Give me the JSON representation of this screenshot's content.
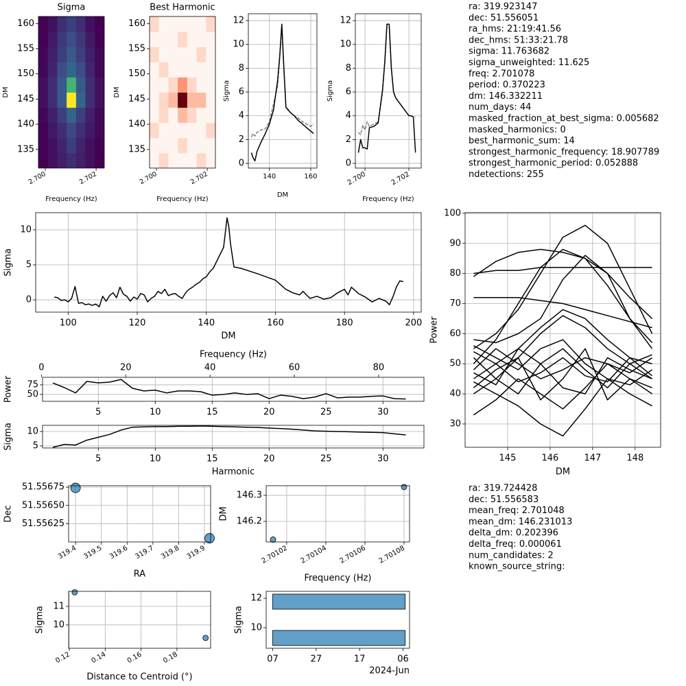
{
  "chart_data": [
    {
      "type": "heatmap",
      "title": "Sigma",
      "xlabel": "Frequency (Hz)",
      "ylabel": "DM",
      "colormap": "viridis",
      "xlim": [
        2.69973,
        2.70232
      ],
      "ylim": [
        131.3,
        161.4
      ],
      "xticks": [
        {
          "value": 2.7,
          "label": "2.700"
        },
        2.702
      ],
      "yticks": [
        135,
        140,
        145,
        150,
        155,
        160
      ],
      "z": [
        [
          1,
          1.5,
          2,
          2.5,
          2,
          1.5,
          1
        ],
        [
          1,
          1.5,
          2.2,
          3,
          2.2,
          1.5,
          1
        ],
        [
          1,
          1.8,
          2.5,
          3.3,
          2.5,
          1.8,
          1.2
        ],
        [
          1.2,
          2,
          3,
          4.5,
          3,
          2,
          1.2
        ],
        [
          1.5,
          2.5,
          4,
          11.7,
          4.5,
          2.5,
          1.5
        ],
        [
          1.5,
          2.5,
          4,
          8,
          4,
          2.5,
          1.5
        ],
        [
          1.2,
          2.2,
          3.5,
          4.5,
          3.5,
          2.2,
          1.2
        ],
        [
          1.2,
          2,
          3,
          4,
          3,
          2,
          1.2
        ],
        [
          1,
          1.8,
          2.8,
          3.5,
          2.8,
          1.8,
          1
        ],
        [
          1,
          1.5,
          2.5,
          3,
          2.5,
          1.5,
          1
        ]
      ]
    },
    {
      "type": "heatmap",
      "title": "Best Harmonic",
      "xlabel": "Frequency (Hz)",
      "ylabel": "DM",
      "colormap": "reds",
      "xlim": [
        2.69973,
        2.70232
      ],
      "ylim": [
        131.3,
        161.4
      ],
      "xticks": [
        {
          "value": 2.7,
          "label": "2.700"
        },
        2.702
      ],
      "yticks": [
        135,
        140,
        145,
        150,
        155,
        160
      ],
      "z": [
        [
          0,
          1,
          0,
          0,
          0,
          1,
          0
        ],
        [
          0,
          0,
          0,
          1,
          0,
          0,
          0
        ],
        [
          1,
          0,
          0,
          0,
          0,
          0,
          1
        ],
        [
          0,
          1,
          0,
          2,
          1,
          0,
          0
        ],
        [
          0,
          1,
          2,
          8,
          2,
          2,
          0
        ],
        [
          0,
          0,
          1,
          3,
          1,
          0,
          0
        ],
        [
          0,
          1,
          0,
          0,
          0,
          0,
          0
        ],
        [
          1,
          0,
          0,
          0,
          0,
          1,
          0
        ],
        [
          0,
          0,
          0,
          1,
          0,
          0,
          0
        ],
        [
          1,
          0,
          0,
          0,
          0,
          0,
          1
        ]
      ]
    },
    {
      "type": "line",
      "xlabel": "DM",
      "ylabel": "Sigma",
      "grid": true,
      "xlim": [
        129.8,
        163
      ],
      "ylim": [
        -0.4,
        12.58
      ],
      "xticks": [
        140,
        160
      ],
      "yticks": [
        0,
        2,
        4,
        6,
        8,
        10,
        12
      ],
      "x": [
        131.3,
        132,
        133,
        134,
        136,
        138,
        140,
        142,
        144,
        145,
        146,
        147,
        148,
        150,
        152,
        154,
        156,
        158,
        160,
        161.4
      ],
      "series": [
        {
          "color": "#808080",
          "linestyle": "dashed",
          "values": [
            2.2,
            2.5,
            2.3,
            2.6,
            2.8,
            2.9,
            3.5,
            5.0,
            6.5,
            9.0,
            11.5,
            8.0,
            4.8,
            4.3,
            4.0,
            3.8,
            3.5,
            3.3,
            3.1,
            3.3
          ]
        },
        {
          "color": "#000000",
          "values": [
            0.9,
            0.5,
            0.2,
            1.0,
            1.8,
            2.5,
            3.3,
            4.5,
            7.0,
            9.0,
            11.7,
            8.0,
            4.7,
            4.3,
            4.0,
            3.6,
            3.3,
            3.0,
            2.7,
            2.5
          ]
        }
      ]
    },
    {
      "type": "line",
      "xlabel": "Frequency (Hz)",
      "ylabel": "Sigma",
      "grid": true,
      "xlim": [
        2.69956,
        2.70256
      ],
      "ylim": [
        -0.4,
        12.58
      ],
      "xticks": [
        {
          "value": 2.7,
          "label": "2.700"
        },
        2.702
      ],
      "yticks": [
        0,
        2,
        4,
        6,
        8,
        10,
        12
      ],
      "x": [
        2.6997,
        2.6998,
        2.6999,
        2.7,
        2.7001,
        2.7002,
        2.7004,
        2.7006,
        2.7008,
        2.7009,
        2.701,
        2.7011,
        2.7012,
        2.7013,
        2.7014,
        2.7016,
        2.7018,
        2.702,
        2.7021,
        2.7022,
        2.7023
      ],
      "series": [
        {
          "color": "#808080",
          "linestyle": "dashed",
          "values": [
            2.6,
            2.4,
            3.2,
            2.8,
            3.5,
            3.1,
            3.3,
            3.5,
            6.0,
            8.5,
            11.7,
            11.7,
            8.0,
            6.0,
            5.5,
            5.0,
            4.5,
            4.0,
            4.0,
            3.9,
            3.9
          ]
        },
        {
          "color": "#000000",
          "values": [
            0.9,
            2.0,
            1.3,
            1.3,
            1.2,
            3.0,
            3.1,
            3.4,
            6.2,
            8.5,
            11.7,
            11.7,
            8.0,
            6.0,
            5.5,
            5.0,
            4.5,
            4.0,
            4.0,
            3.9,
            0.9
          ]
        }
      ]
    },
    {
      "type": "line",
      "xlabel": "DM",
      "ylabel": "Sigma",
      "grid": true,
      "xlim": [
        90.6,
        202.2
      ],
      "ylim": [
        -1.76,
        12.45
      ],
      "xticks": [
        100,
        120,
        140,
        160,
        180,
        200
      ],
      "yticks": [
        0,
        5,
        10
      ],
      "x": [
        96,
        97,
        98,
        99,
        100,
        101,
        102,
        103,
        104,
        105,
        106,
        107,
        108,
        109,
        110,
        111,
        112,
        113,
        114,
        115,
        116,
        117,
        118,
        119,
        120,
        121,
        122,
        123,
        124,
        125,
        126,
        127,
        128,
        129,
        130,
        131,
        132,
        133,
        134,
        135,
        136,
        137,
        138,
        139,
        140,
        141,
        142,
        143,
        144,
        145,
        146,
        146.5,
        147,
        148,
        150,
        155,
        160,
        163,
        165,
        167,
        168,
        170,
        172,
        174,
        176,
        178,
        180,
        181,
        182,
        184,
        186,
        188,
        190,
        192,
        193,
        194,
        195,
        196,
        197
      ],
      "series": [
        {
          "color": "#000000",
          "values": [
            0.4,
            0.3,
            -0.1,
            0,
            -0.3,
            0.2,
            1.9,
            -0.5,
            -0.4,
            -0.7,
            -0.6,
            -0.8,
            -0.6,
            -1,
            0.5,
            -0.2,
            0.6,
            1,
            0.3,
            1.8,
            0.8,
            0.5,
            -0.2,
            0.4,
            0.1,
            0.9,
            0.7,
            -0.3,
            0.2,
            0.5,
            1.2,
            0.9,
            1.5,
            0.6,
            0.8,
            0.9,
            0.5,
            0.2,
            1,
            1.5,
            1.8,
            2.2,
            2.5,
            3,
            3.3,
            4,
            4.5,
            5.5,
            6.5,
            7.5,
            11.7,
            10.5,
            8,
            4.7,
            4.5,
            3.7,
            2.8,
            1.5,
            1,
            0.7,
            1.2,
            0.2,
            0.5,
            0.1,
            0.3,
            1,
            1.5,
            0.7,
            1.8,
            0.9,
            0.4,
            -0.3,
            0.2,
            -0.2,
            -0.7,
            0.4,
            1.8,
            2.7,
            2.6
          ]
        }
      ]
    },
    {
      "type": "line",
      "ylabel": "Power",
      "x2label": "Frequency (Hz)",
      "grid": true,
      "xlim": [
        0.1,
        33.6
      ],
      "ylim": [
        32,
        94.6
      ],
      "xticks": [
        5,
        10,
        15,
        20,
        25,
        30
      ],
      "yticks": [
        50,
        75
      ],
      "x2lim": [
        0.27,
        90.75
      ],
      "x2ticks": [
        0,
        20,
        40,
        60,
        80
      ],
      "x": [
        1,
        2,
        3,
        4,
        5,
        6,
        7,
        8,
        9,
        10,
        11,
        12,
        13,
        14,
        15,
        16,
        17,
        18,
        19,
        20,
        21,
        22,
        23,
        24,
        25,
        26,
        27,
        28,
        29,
        30,
        31,
        32
      ],
      "series": [
        {
          "color": "#000000",
          "values": [
            80,
            68,
            54,
            84,
            80,
            82,
            89,
            66,
            59,
            61,
            54,
            59,
            59,
            57,
            48,
            50,
            54,
            50,
            52,
            39,
            48,
            45,
            39,
            43,
            52,
            41,
            43,
            43,
            45,
            46,
            39,
            38
          ]
        }
      ]
    },
    {
      "type": "line",
      "xlabel": "Harmonic",
      "ylabel": "Sigma",
      "grid": true,
      "xlim": [
        0.1,
        33.6
      ],
      "ylim": [
        4.29,
        12.14
      ],
      "xticks": [
        5,
        10,
        15,
        20,
        25,
        30
      ],
      "yticks": [
        5,
        10
      ],
      "x": [
        1,
        2,
        3,
        4,
        5,
        6,
        7,
        8,
        9,
        10,
        11,
        12,
        13,
        14,
        15,
        16,
        17,
        18,
        19,
        20,
        21,
        22,
        23,
        24,
        25,
        26,
        27,
        28,
        29,
        30,
        31,
        32
      ],
      "series": [
        {
          "color": "#000000",
          "values": [
            4.5,
            5.5,
            5.3,
            7,
            8,
            9,
            10.5,
            11.5,
            11.6,
            11.7,
            11.7,
            11.8,
            11.8,
            11.9,
            11.8,
            11.7,
            11.6,
            11.5,
            11.4,
            11.2,
            11,
            10.8,
            10.5,
            10.2,
            10.1,
            10,
            9.9,
            9.8,
            9.7,
            9.6,
            9.2,
            8.8
          ]
        }
      ]
    },
    {
      "type": "line",
      "xlabel": "DM",
      "ylabel": "Power",
      "grid": true,
      "color": "#000000",
      "xlim": [
        144.0,
        148.6
      ],
      "ylim": [
        22.25,
        100.2
      ],
      "xticks": [
        145,
        146,
        147,
        148
      ],
      "yticks": [
        30,
        40,
        50,
        60,
        70,
        80,
        90,
        100
      ],
      "x": [
        144.2,
        144.725,
        145.25,
        145.775,
        146.3,
        146.825,
        147.35,
        147.875,
        148.4
      ],
      "series": [
        {
          "values": [
            79,
            84,
            87,
            88,
            87,
            85,
            80,
            72,
            65
          ]
        },
        {
          "values": [
            80,
            81,
            81,
            82,
            82,
            82,
            82,
            82,
            82
          ]
        },
        {
          "values": [
            72,
            72,
            72,
            71,
            70,
            68,
            66,
            64,
            62
          ]
        },
        {
          "values": [
            55,
            60,
            68,
            80,
            92,
            96,
            90,
            75,
            60
          ]
        },
        {
          "values": [
            50,
            58,
            70,
            82,
            88,
            85,
            76,
            65,
            55
          ]
        },
        {
          "values": [
            58,
            57,
            60,
            65,
            78,
            86,
            80,
            65,
            57
          ]
        },
        {
          "values": [
            45,
            50,
            55,
            62,
            68,
            65,
            58,
            52,
            50
          ]
        },
        {
          "values": [
            40,
            45,
            52,
            60,
            66,
            62,
            55,
            50,
            45
          ]
        },
        {
          "values": [
            48,
            55,
            50,
            45,
            48,
            52,
            50,
            47,
            52
          ]
        },
        {
          "values": [
            33,
            38,
            45,
            40,
            35,
            42,
            50,
            45,
            40
          ]
        },
        {
          "values": [
            52,
            45,
            40,
            50,
            55,
            48,
            42,
            50,
            53
          ]
        },
        {
          "values": [
            44,
            40,
            36,
            30,
            26,
            35,
            45,
            40,
            36
          ]
        },
        {
          "values": [
            56,
            52,
            48,
            55,
            58,
            50,
            45,
            43,
            48
          ]
        },
        {
          "values": [
            42,
            48,
            52,
            38,
            45,
            55,
            38,
            45,
            42
          ]
        },
        {
          "values": [
            47,
            43,
            55,
            50,
            42,
            40,
            52,
            48,
            45
          ]
        },
        {
          "values": [
            54,
            50,
            44,
            47,
            52,
            46,
            44,
            52,
            46
          ]
        }
      ]
    },
    {
      "type": "scatter",
      "xlabel": "RA",
      "ylabel": "Dec",
      "grid": true,
      "color": "#1f77b4",
      "xlim": [
        319.373,
        319.924
      ],
      "ylim": [
        51.556,
        51.55677
      ],
      "xticks": [
        319.4,
        319.5,
        319.6,
        319.7,
        319.8,
        319.9
      ],
      "yticks": [
        51.55625,
        {
          "value": 51.5565,
          "label": "51.55650"
        },
        51.55675
      ],
      "x": [
        319.4,
        319.92
      ],
      "values": [
        51.55674,
        51.55605
      ]
    },
    {
      "type": "scatter",
      "xlabel": "Frequency (Hz)",
      "ylabel": "DM",
      "grid": true,
      "color": "#1f77b4",
      "xlim": [
        2.7010095,
        2.7010828
      ],
      "ylim": [
        146.121,
        146.337
      ],
      "xticks": [
        2.70102,
        2.70104,
        2.70106,
        2.70108
      ],
      "yticks": [
        146.2,
        146.3
      ],
      "x": [
        2.701013,
        2.70108
      ],
      "values": [
        146.13,
        146.332
      ]
    },
    {
      "type": "scatter",
      "xlabel": "Distance to Centroid (°)",
      "ylabel": "Sigma",
      "grid": true,
      "color": "#1f77b4",
      "xlim": [
        0.1196,
        0.1988
      ],
      "ylim": [
        8.74,
        11.81
      ],
      "xticks": [
        0.12,
        0.14,
        0.16,
        0.18
      ],
      "yticks": [
        10,
        11
      ],
      "x": [
        0.123,
        0.196
      ],
      "values": [
        11.76,
        9.3
      ]
    },
    {
      "type": "barh",
      "ylabel": "Sigma",
      "color": "#1f77b4",
      "xoffset": "2024-Jun",
      "xlim": [
        "2024-06-04",
        "2024-08-09"
      ],
      "ylim": [
        8.6,
        12.47
      ],
      "xticks": [
        {
          "value": "2024-06-07",
          "label": "07"
        },
        {
          "value": "2024-06-27",
          "label": "27"
        },
        {
          "value": "2024-07-17",
          "label": "17"
        },
        {
          "value": "2024-08-06",
          "label": "06"
        }
      ],
      "yticks": [
        10,
        12
      ],
      "values": [
        11.77,
        9.3
      ],
      "starts": [
        "2024-06-07",
        "2024-06-07"
      ],
      "ends": [
        "2024-08-07",
        "2024-08-07"
      ]
    }
  ],
  "info": {
    "candidate": [
      "ra: 319.923147",
      "dec: 51.556051",
      "ra_hms: 21:19:41.56",
      "dec_hms: 51:33:21.78",
      "sigma: 11.763682",
      "sigma_unweighted: 11.625",
      "freq: 2.701078",
      "period: 0.370223",
      "dm: 146.332211",
      "num_days: 44",
      "masked_fraction_at_best_sigma: 0.005682",
      "masked_harmonics: 0",
      "best_harmonic_sum: 14",
      "strongest_harmonic_frequency: 18.907789",
      "strongest_harmonic_period: 0.052888",
      "ndetections: 255"
    ],
    "cluster": [
      "ra: 319.724428",
      "dec: 51.556583",
      "mean_freq: 2.701048",
      "mean_dm: 146.231013",
      "delta_dm: 0.202396",
      "delta_freq: 0.000061",
      "num_candidates: 2",
      "known_source_string:"
    ]
  }
}
